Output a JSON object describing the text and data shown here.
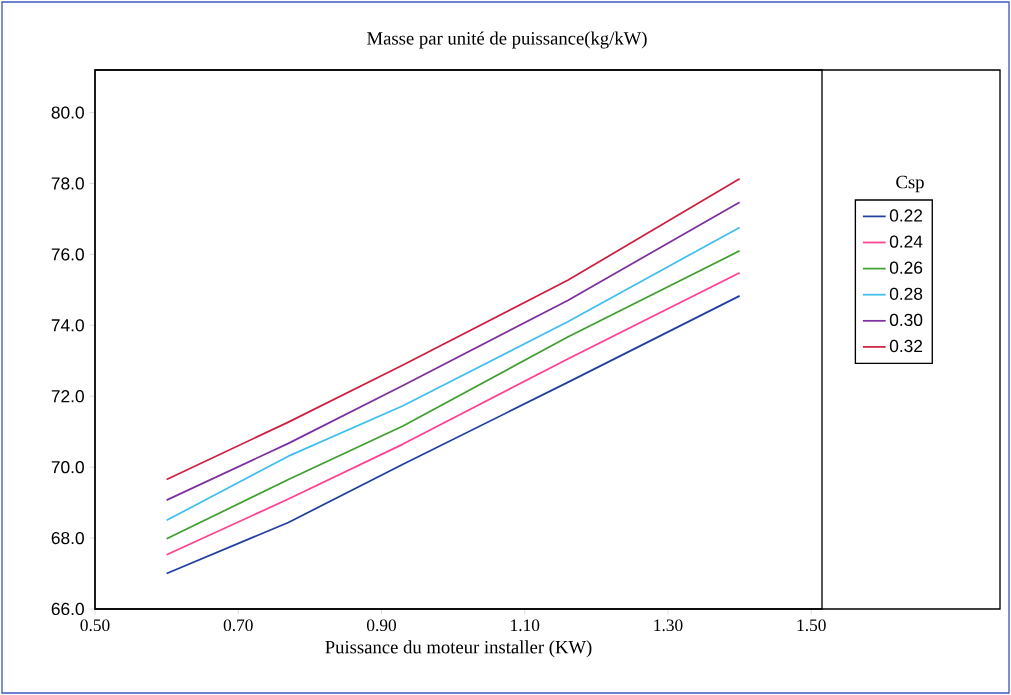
{
  "chart_data": {
    "type": "line",
    "title": "Masse par unité de puissance(kg/kW)",
    "xlabel": "Puissance du moteur installer (KW)",
    "legend_title": "Csp",
    "legend": "right",
    "grid": false,
    "marker": "none",
    "line_style": "solid",
    "x": [
      0.6,
      0.77,
      0.93,
      1.16,
      1.4
    ],
    "xlim": [
      0.5,
      1.515
    ],
    "ylim": [
      66,
      81.2
    ],
    "xticks": [
      {
        "value": 0.5,
        "label": "0.50"
      },
      {
        "value": 0.7,
        "label": "0.70"
      },
      {
        "value": 0.9,
        "label": "0.90"
      },
      {
        "value": 1.1,
        "label": "1.10"
      },
      {
        "value": 1.3,
        "label": "1.30"
      },
      {
        "value": 1.5,
        "label": "1.50"
      }
    ],
    "yticks": [
      {
        "value": 66,
        "label": "66.0"
      },
      {
        "value": 68,
        "label": "68.0"
      },
      {
        "value": 70,
        "label": "70.0"
      },
      {
        "value": 72,
        "label": "72.0"
      },
      {
        "value": 74,
        "label": "74.0"
      },
      {
        "value": 76,
        "label": "76.0"
      },
      {
        "value": 78,
        "label": "78.0"
      },
      {
        "value": 80,
        "label": "80.0"
      }
    ],
    "series": [
      {
        "name": "0.22",
        "color": "#1f3f9f",
        "values": [
          67.0,
          68.44,
          70.08,
          72.39,
          74.83
        ]
      },
      {
        "name": "0.24",
        "color": "#ff3f8f",
        "values": [
          67.53,
          69.1,
          70.65,
          73.05,
          75.48
        ]
      },
      {
        "name": "0.26",
        "color": "#3f9f2f",
        "values": [
          67.98,
          69.65,
          71.16,
          73.67,
          76.1
        ]
      },
      {
        "name": "0.28",
        "color": "#3fbfef",
        "values": [
          68.5,
          70.31,
          71.73,
          74.1,
          76.76
        ]
      },
      {
        "name": "0.30",
        "color": "#7f2f9f",
        "values": [
          69.07,
          70.67,
          72.3,
          74.7,
          77.47
        ]
      },
      {
        "name": "0.32",
        "color": "#cf1f3f",
        "values": [
          69.65,
          71.27,
          72.88,
          75.27,
          78.13
        ]
      }
    ]
  }
}
